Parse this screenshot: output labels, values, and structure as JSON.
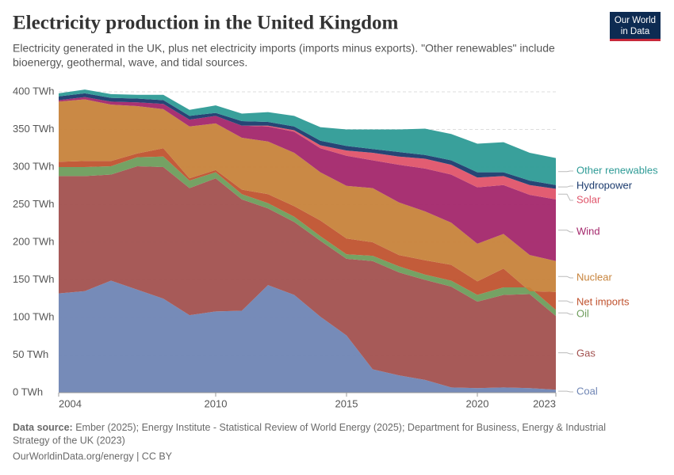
{
  "chart_data": {
    "type": "stacked_area",
    "title": "Electricity production in the United Kingdom",
    "subtitle": [
      "Electricity generated in the UK, plus net electricity imports (imports minus exports). \"Other renewables\" include",
      "bioenergy, geothermal, wave, and tidal sources."
    ],
    "logo": [
      "Our World",
      "in Data"
    ],
    "source_label": "Data source:",
    "source_text": [
      "Ember (2025); Energy Institute - Statistical Review of World Energy (2025); Department for Business, Energy & Industrial",
      "Strategy of the UK (2023)"
    ],
    "footer": "OurWorldinData.org/energy | CC BY",
    "x": [
      2004,
      2005,
      2006,
      2007,
      2008,
      2009,
      2010,
      2011,
      2012,
      2013,
      2014,
      2015,
      2016,
      2017,
      2018,
      2019,
      2020,
      2021,
      2022,
      2023
    ],
    "xlim": [
      2004,
      2023
    ],
    "xticks": [
      2004,
      2010,
      2015,
      2020,
      2023
    ],
    "ylim": [
      0,
      400
    ],
    "yticks": [
      {
        "value": 0,
        "label": "0 TWh"
      },
      {
        "value": 50,
        "label": "50 TWh"
      },
      {
        "value": 100,
        "label": "100 TWh"
      },
      {
        "value": 150,
        "label": "150 TWh"
      },
      {
        "value": 200,
        "label": "200 TWh"
      },
      {
        "value": 250,
        "label": "250 TWh"
      },
      {
        "value": 300,
        "label": "300 TWh"
      },
      {
        "value": 350,
        "label": "350 TWh"
      },
      {
        "value": 400,
        "label": "400 TWh"
      }
    ],
    "grid": true,
    "series": [
      {
        "name": "Coal",
        "color": "#6f85b4",
        "values": [
          132,
          135,
          149,
          137,
          125,
          103,
          108,
          109,
          143,
          130,
          101,
          76,
          31,
          23,
          17,
          7,
          6,
          7,
          6,
          4
        ]
      },
      {
        "name": "Gas",
        "color": "#a2514f",
        "values": [
          156,
          153,
          141,
          164,
          175,
          169,
          177,
          148,
          102,
          97,
          101,
          102,
          144,
          137,
          133,
          134,
          115,
          123,
          125,
          98
        ]
      },
      {
        "name": "Oil",
        "color": "#6e9d5c",
        "values": [
          12,
          12,
          11,
          12,
          14,
          10,
          8,
          7,
          7,
          7,
          6,
          6,
          7,
          8,
          7,
          8,
          9,
          10,
          9,
          8
        ]
      },
      {
        "name": "Net imports",
        "color": "#c0532f",
        "values": [
          7,
          8,
          7,
          5,
          11,
          3,
          3,
          6,
          12,
          14,
          21,
          21,
          18,
          15,
          19,
          21,
          18,
          25,
          -5,
          24
        ]
      },
      {
        "name": "Nuclear",
        "color": "#c7833b",
        "values": [
          80,
          82,
          75,
          63,
          52,
          69,
          62,
          69,
          70,
          71,
          64,
          70,
          72,
          70,
          65,
          56,
          50,
          46,
          48,
          41
        ]
      },
      {
        "name": "Wind",
        "color": "#a3276b",
        "values": [
          2,
          3,
          4,
          5,
          7,
          9,
          10,
          16,
          20,
          28,
          32,
          40,
          37,
          50,
          57,
          64,
          75,
          65,
          80,
          82
        ]
      },
      {
        "name": "Solar",
        "color": "#e0546a",
        "values": [
          0,
          0,
          0,
          0,
          0,
          0,
          0,
          0,
          1,
          2,
          4,
          7,
          10,
          11,
          13,
          13,
          13,
          12,
          13,
          14
        ]
      },
      {
        "name": "Hydropower",
        "color": "#1b3b6e",
        "values": [
          5,
          5,
          5,
          5,
          5,
          5,
          4,
          6,
          5,
          5,
          6,
          6,
          5,
          6,
          5,
          6,
          7,
          5,
          6,
          5
        ]
      },
      {
        "name": "Other renewables",
        "color": "#2e9b96",
        "values": [
          4,
          5,
          5,
          5,
          7,
          8,
          10,
          10,
          13,
          14,
          18,
          22,
          26,
          30,
          35,
          35,
          38,
          40,
          37,
          36
        ]
      }
    ]
  }
}
